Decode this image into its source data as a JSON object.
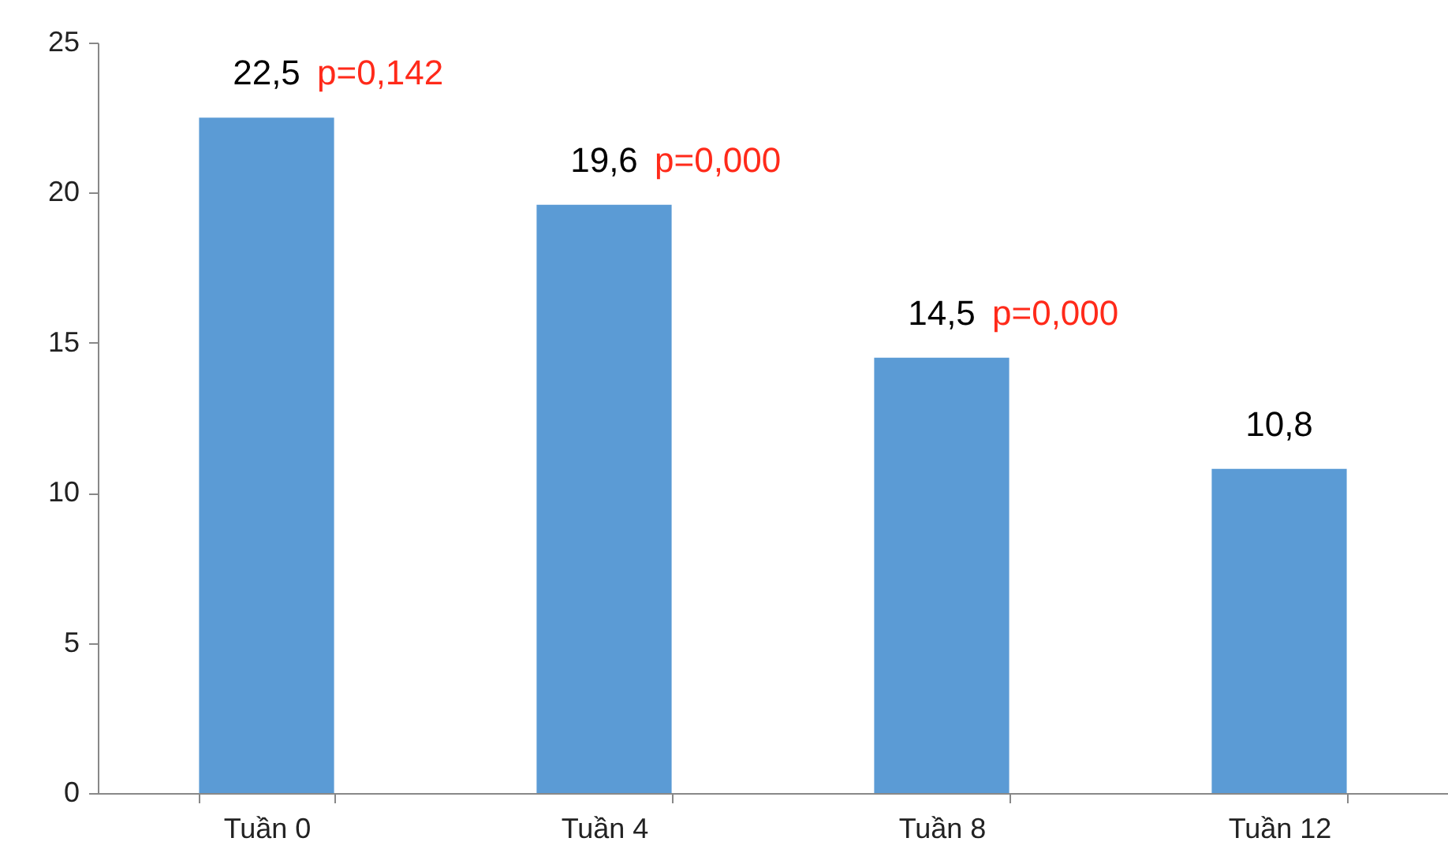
{
  "chart_data": {
    "type": "bar",
    "categories": [
      "Tuần 0",
      "Tuần 4",
      "Tuần 8",
      "Tuần 12"
    ],
    "values": [
      22.5,
      19.6,
      14.5,
      10.8
    ],
    "value_labels": [
      "22,5",
      "19,6",
      "14,5",
      "10,8"
    ],
    "color": "#5b9bd5",
    "ylim": [
      0,
      25
    ],
    "yticks": [
      0,
      5,
      10,
      15,
      20,
      25
    ],
    "grid": false,
    "annotations": [
      {
        "text": "p=0,142",
        "x": "Tuần 0",
        "y": 22.5
      },
      {
        "text": "p=0,000",
        "x": "Tuần 4",
        "y": 19.6
      },
      {
        "text": "p=0,000",
        "x": "Tuần 8",
        "y": 14.5
      }
    ]
  }
}
